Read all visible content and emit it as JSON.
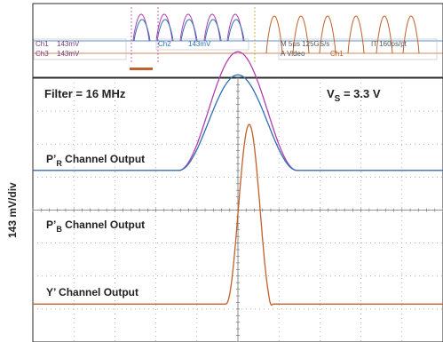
{
  "chart_data": {
    "type": "line",
    "ylabel": "143 mV/div",
    "annotations": {
      "filter": "Filter = 16 MHz",
      "supply_main": "V",
      "supply_sub": "S",
      "supply_value": " = 3.3 V"
    },
    "channel_labels": [
      {
        "main": "P’",
        "sub": "R",
        "rest": " Channel Output"
      },
      {
        "main": "P’",
        "sub": "B",
        "rest": " Channel Output"
      },
      {
        "main": "Y’",
        "sub": "",
        "rest": " Channel Output"
      }
    ],
    "overview_readouts": {
      "ch1": "Ch1",
      "ch1_scale": "143mV",
      "ch2": "Ch2",
      "ch2_scale": "143mV",
      "ch3": "Ch3",
      "ch3_scale": "143mV",
      "timebase": "M 5μs 125GS/s",
      "sample": "IT 160ps/pt",
      "trigger": "A Video",
      "trigger_src": "Ch1"
    },
    "divisions": {
      "x": 10,
      "y": 8
    },
    "series": [
      {
        "color": "#b040b0",
        "baseline_div": 5.2,
        "peak_div": 8.8,
        "t_start": 3.55,
        "t_rise_end": 5.0,
        "t_fall_start": 5.0,
        "t_end": 6.45,
        "shape": "raised-cosine"
      },
      {
        "color": "#2e6fb3",
        "baseline_div": 5.2,
        "peak_div": 8.1,
        "t_start": 3.55,
        "t_rise_end": 5.0,
        "t_fall_start": 5.0,
        "t_end": 6.45,
        "shape": "raised-cosine"
      },
      {
        "color": "#c0602a",
        "baseline_div": 1.15,
        "peak_div": 6.6,
        "t_start": 4.7,
        "t_rise_end": 5.0,
        "t_fall_start": 5.0,
        "t_end": 5.85,
        "shape": "gaussian-pulse"
      }
    ],
    "colors": {
      "grid": "#9a9a9a",
      "frame": "#2a2a2a",
      "y_trace": "#c0602a",
      "pr_trace": "#b040b0",
      "pb_trace": "#2e6fb3"
    }
  }
}
